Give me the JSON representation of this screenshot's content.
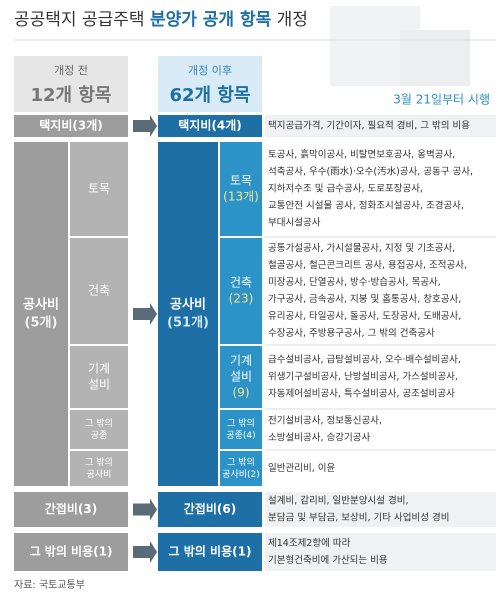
{
  "title": {
    "prefix": "공공택지 공급주택 ",
    "highlight": "분양가 공개 항목",
    "suffix": " 개정"
  },
  "before_header": {
    "label": "개정 전",
    "count": "12개 항목"
  },
  "after_header": {
    "label": "개정 이후",
    "count": "62개 항목"
  },
  "effective_date": "3월 21일부터 시행",
  "rows": [
    {
      "before": [
        "택지비(3개)"
      ],
      "after": [
        "택지비(4개)"
      ],
      "details": [
        "택지공급가격, 기간이자, 필요적 경비, 그 밖의 비용"
      ]
    },
    {
      "before": [
        "공사비",
        "(5개)"
      ],
      "after": [
        "공사비",
        "(51개)"
      ],
      "subs": [
        {
          "before": [
            "토목"
          ],
          "after": [
            "토목",
            "(13개)"
          ],
          "details": [
            "토공사, 흙막이공사, 비탈면보호공사, 옹벽공사,",
            "석축공사, 우수(雨水)·오수(汚水)공사, 공동구 공사,",
            "지하저수조 및 급수공사, 도로포장공사,",
            "교통안전 시설물 공사, 정화조시설공사, 조경공사,",
            "부대시설공사"
          ]
        },
        {
          "before": [
            "건축"
          ],
          "after": [
            "건축",
            "(23)"
          ],
          "details": [
            "공통가설공사, 가시설물공사, 지정 및 기초공사,",
            "철골공사, 철근콘크리트 공사, 용접공사, 조적공사,",
            "미장공사, 단열공사, 방수·방습공사, 목공사,",
            "가구공사, 금속공사, 지붕 및 홈통공사, 창호공사,",
            "유리공사, 타일공사, 돌공사, 도장공사, 도배공사,",
            "수장공사, 주방용구공사, 그 밖의 건축공사"
          ]
        },
        {
          "before": [
            "기계",
            "설비"
          ],
          "after": [
            "기계",
            "설비",
            "(9)"
          ],
          "details": [
            "급수설비공사, 급탕설비공사, 오수·배수설비공사,",
            "위생기구설비공사, 난방설비공사, 가스설비공사,",
            "자동제어설비공사, 특수설비공사, 공조설비공사"
          ]
        },
        {
          "before": [
            "그 밖의",
            "공종"
          ],
          "after": [
            "그 밖의",
            "공종(4)"
          ],
          "details": [
            "전기설비공사, 정보통신공사,",
            "소방설비공사, 승강기공사"
          ]
        },
        {
          "before": [
            "그 밖의",
            "공사비"
          ],
          "after": [
            "그 밖의",
            "공사비(2)"
          ],
          "details": [
            "일반관리비, 이윤"
          ]
        }
      ]
    },
    {
      "before": [
        "간접비(3)"
      ],
      "after": [
        "간접비(6)"
      ],
      "details": [
        "설계비, 감리비, 일반분양시설 경비,",
        "분담금 및 부담금, 보상비, 기타 사업비성 경비"
      ]
    },
    {
      "before": [
        "그 밖의 비용(1)"
      ],
      "after": [
        "그 밖의 비용(1)"
      ],
      "details": [
        "제14조제2항에 따라",
        "기본형건축비에 가산되는 비용"
      ]
    }
  ],
  "source": "자료: 국토교통부"
}
